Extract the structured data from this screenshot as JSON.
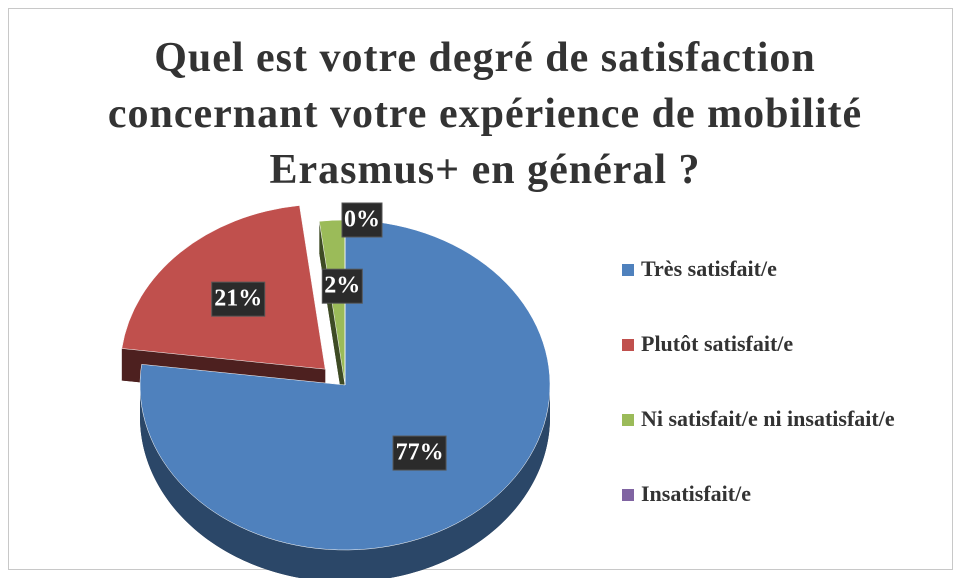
{
  "chart_data": {
    "type": "pie",
    "title": "Quel est votre degré de satisfaction concernant votre expérience de mobilité Erasmus+ en général ?",
    "categories": [
      "Très satisfait/e",
      "Plutôt satisfait/e",
      "Ni satisfait/e ni insatisfait/e",
      "Insatisfait/e"
    ],
    "values": [
      77,
      21,
      2,
      0
    ],
    "value_labels": [
      "77%",
      "21%",
      "2%",
      "0%"
    ],
    "colors": [
      "#4f81bd",
      "#c0504d",
      "#9bbb59",
      "#8064a2"
    ],
    "legend": "right"
  }
}
